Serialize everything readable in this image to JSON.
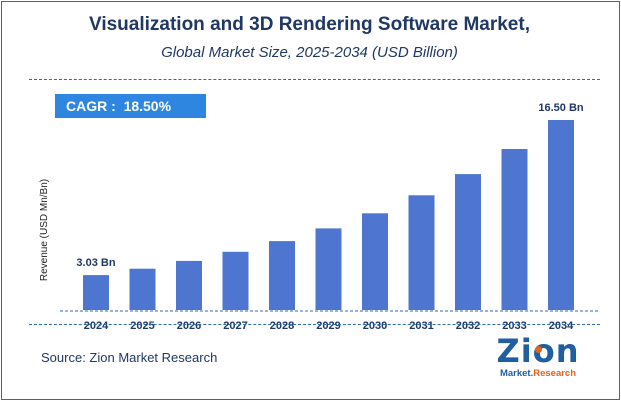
{
  "header": {
    "title": "Visualization and 3D Rendering Software Market,",
    "subtitle": "Global Market Size, 2025-2034 (USD Billion)"
  },
  "cagr": {
    "label": "CAGR :",
    "value": "18.50%"
  },
  "chart_data": {
    "type": "bar",
    "title": "Visualization and 3D Rendering Software Market,",
    "subtitle": "Global Market Size, 2025-2034 (USD Billion)",
    "xlabel": "",
    "ylabel": "Revenue (USD Mn/Bn)",
    "categories": [
      "2024",
      "2025",
      "2026",
      "2027",
      "2028",
      "2029",
      "2030",
      "2031",
      "2032",
      "2033",
      "2034"
    ],
    "values": [
      3.03,
      3.59,
      4.26,
      5.05,
      5.98,
      7.09,
      8.4,
      9.96,
      11.8,
      13.98,
      16.5
    ],
    "ylim": [
      0,
      16.5
    ],
    "grid": false,
    "data_labels": [
      {
        "index": 0,
        "text": "3.03 Bn"
      },
      {
        "index": 10,
        "text": "16.50 Bn"
      }
    ],
    "bar_color": "#4e75d0"
  },
  "footer": {
    "source": "Source: Zion Market Research"
  },
  "logo": {
    "name": "Zion",
    "tagline_a": "Market.",
    "tagline_b": "Research"
  },
  "colors": {
    "title": "#1f3864",
    "accent": "#2e86e0",
    "border": "#2f6ab0",
    "bar": "#4e75d0",
    "logo_orange": "#e3621e"
  }
}
